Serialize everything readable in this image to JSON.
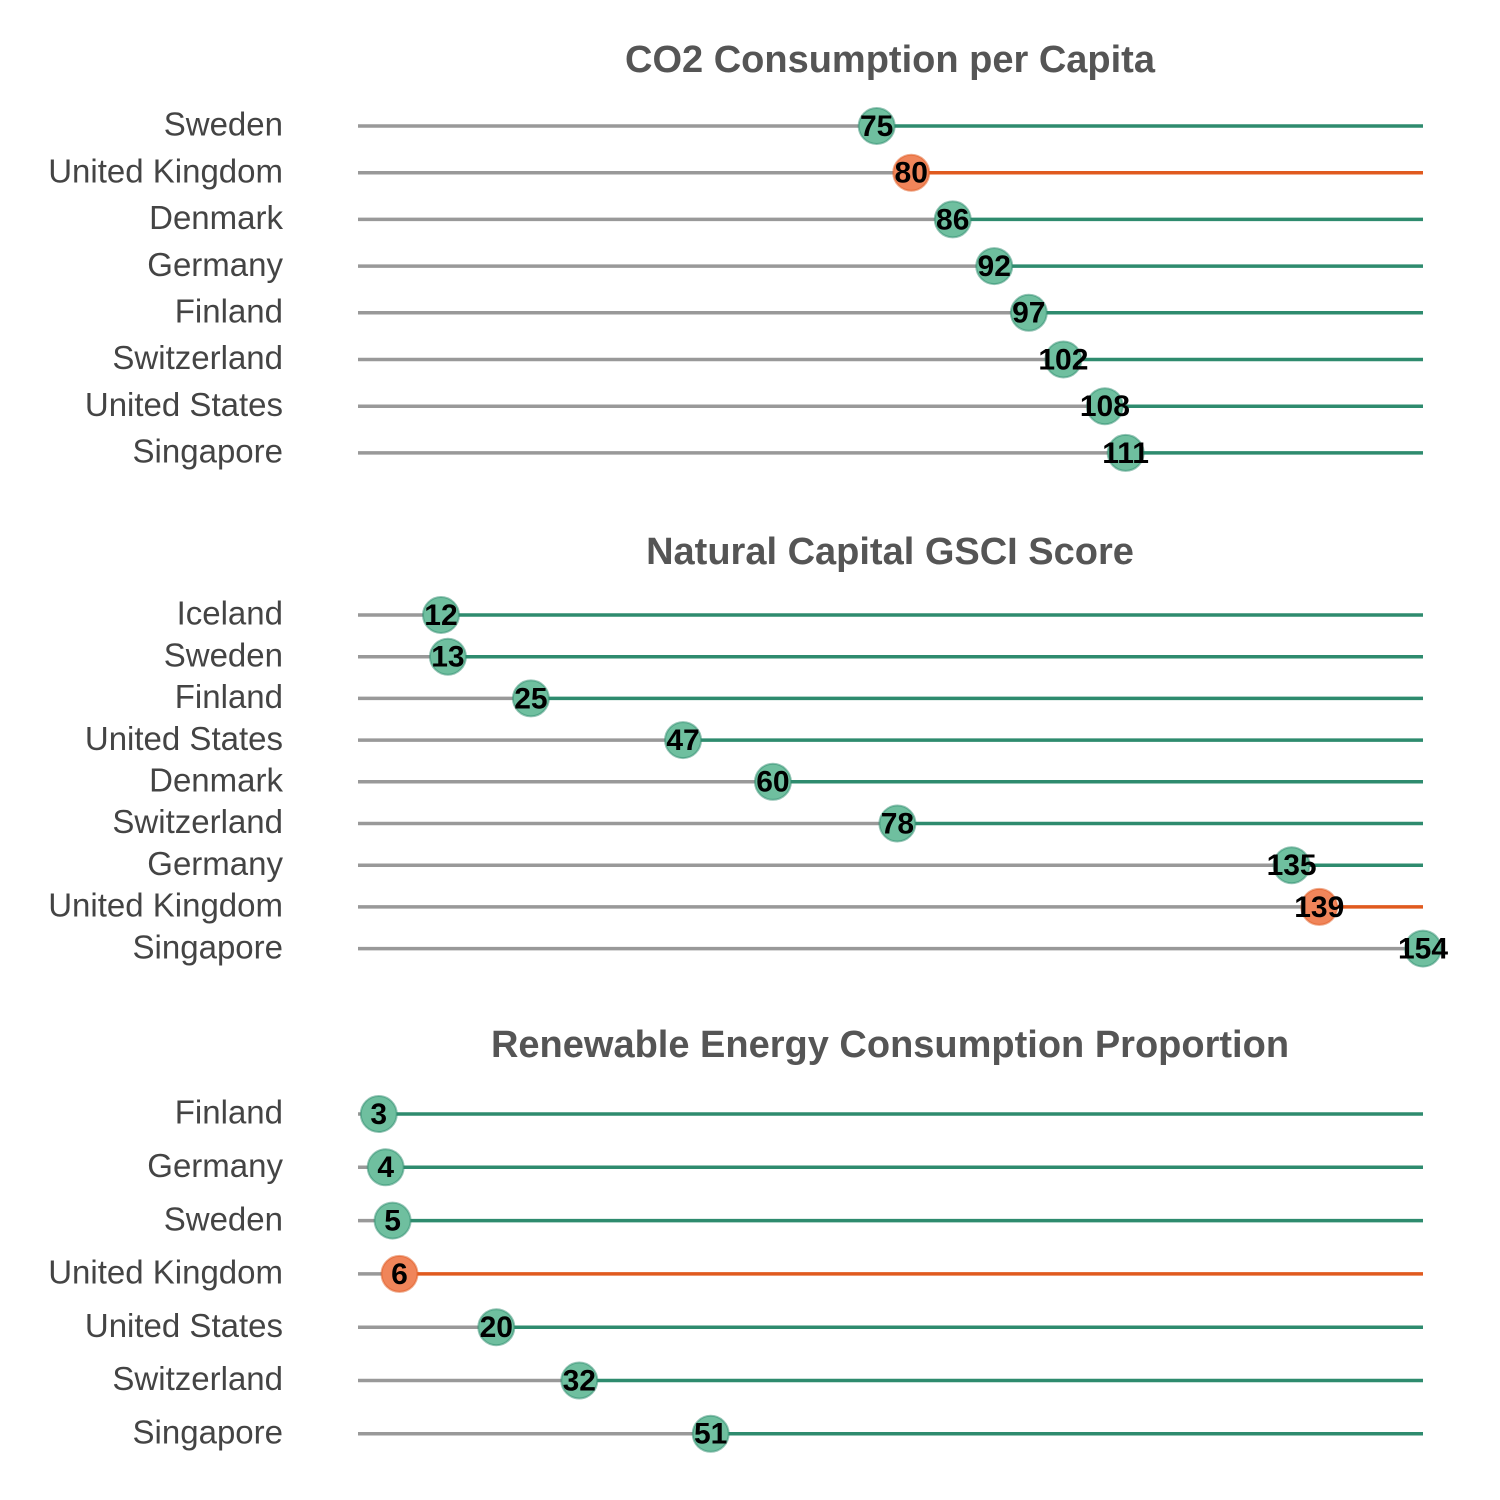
{
  "chart_data": [
    {
      "type": "lollipop",
      "title": "CO2 Consumption per Capita",
      "xlabel": "",
      "ylabel": "",
      "xlim": [
        0,
        154
      ],
      "categories": [
        "Sweden",
        "United Kingdom",
        "Denmark",
        "Germany",
        "Finland",
        "Switzerland",
        "United States",
        "Singapore"
      ],
      "values": [
        75,
        80,
        86,
        92,
        97,
        102,
        108,
        111
      ],
      "highlight": "United Kingdom"
    },
    {
      "type": "lollipop",
      "title": "Natural Capital GSCI Score",
      "xlabel": "",
      "ylabel": "",
      "xlim": [
        0,
        154
      ],
      "categories": [
        "Iceland",
        "Sweden",
        "Finland",
        "United States",
        "Denmark",
        "Switzerland",
        "Germany",
        "United Kingdom",
        "Singapore"
      ],
      "values": [
        12,
        13,
        25,
        47,
        60,
        78,
        135,
        139,
        154
      ],
      "highlight": "United Kingdom"
    },
    {
      "type": "lollipop",
      "title": "Renewable Energy Consumption Proportion",
      "xlabel": "",
      "ylabel": "",
      "xlim": [
        0,
        154
      ],
      "categories": [
        "Finland",
        "Germany",
        "Sweden",
        "United Kingdom",
        "United States",
        "Switzerland",
        "Singapore"
      ],
      "values": [
        3,
        4,
        5,
        6,
        20,
        32,
        51
      ],
      "highlight": "United Kingdom"
    }
  ],
  "colors": {
    "title": "#555555",
    "label": "#444444",
    "stem_before": "#999999",
    "stem_after": "#2e8b6e",
    "stem_after_highlight": "#e05a1f",
    "dot": "#6fbf9f",
    "dot_highlight": "#f0855a",
    "value_text": "#000000"
  }
}
